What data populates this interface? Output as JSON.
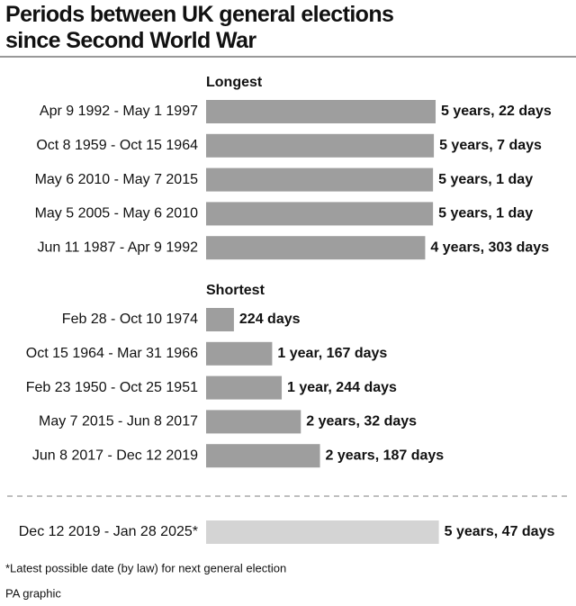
{
  "chart_data": {
    "type": "bar",
    "title": "Periods between UK general elections since Second World War",
    "color": "#9e9e9e",
    "groups": [
      {
        "name": "Longest",
        "categories": [
          "Apr 9 1992 - May 1 1997",
          "Oct 8 1959 - Oct 15 1964",
          "May 6 2010 - May 7 2015",
          "May 5 2005 - May 6 2010",
          "Jun 11 1987 - Apr 9 1992"
        ],
        "values": [
          1848,
          1834,
          1827,
          1827,
          1764
        ],
        "value_labels": [
          "5 years, 22 days",
          "5 years, 7 days",
          "5 years, 1 day",
          "5 years, 1 day",
          "4 years, 303 days"
        ]
      },
      {
        "name": "Shortest",
        "categories": [
          "Feb 28 - Oct 10 1974",
          "Oct 15 1964 - Mar 31 1966",
          "Feb 23 1950 - Oct 25 1951",
          "May 7 2015 - Jun 8 2017",
          "Jun 8 2017 - Dec 12 2019"
        ],
        "values": [
          224,
          532,
          609,
          763,
          917
        ],
        "value_labels": [
          "224 days",
          "1 year, 167 days",
          "1 year, 244 days",
          "2 years, 32 days",
          "2 years, 187 days"
        ]
      }
    ],
    "projected": {
      "color": "#d4d4d4",
      "categories": [
        "Dec 12 2019 - Jan 28 2025*"
      ],
      "values": [
        1874
      ],
      "value_labels": [
        "5 years, 47 days"
      ]
    },
    "footnote": "*Latest possible date (by law) for next general election",
    "source": "PA graphic"
  }
}
